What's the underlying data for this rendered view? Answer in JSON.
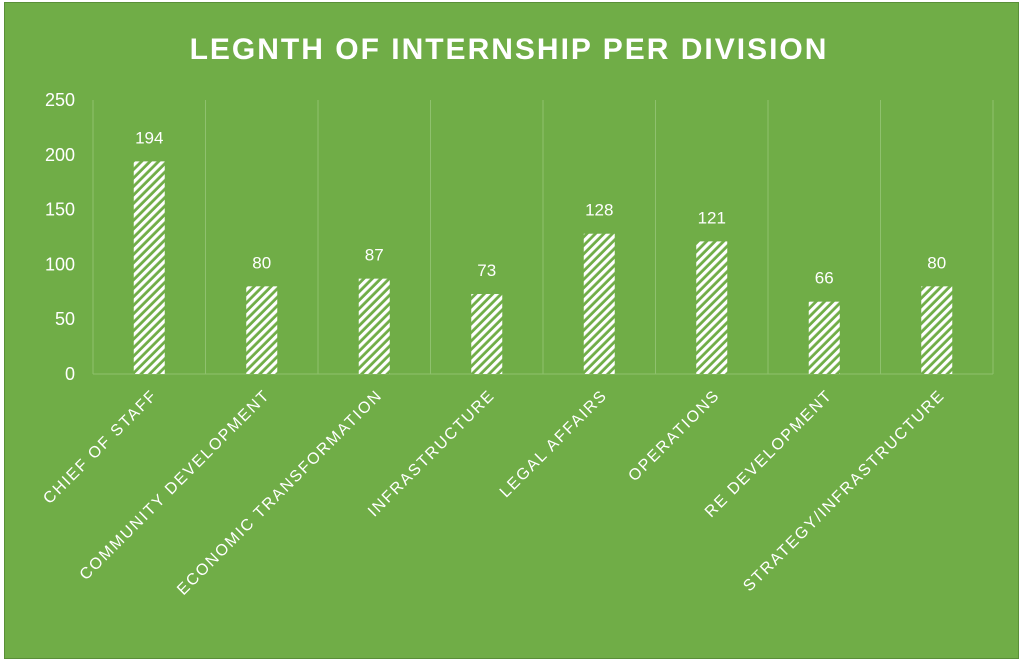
{
  "chart_data": {
    "type": "bar",
    "title": "LEGNTH OF INTERNSHIP PER DIVISION",
    "xlabel": "",
    "ylabel": "",
    "categories": [
      "CHIEF OF STAFF",
      "COMMUNITY DEVELOPMENT",
      "ECONOMIC TRANSFORMATION",
      "INFRASTRUCTURE",
      "LEGAL AFFAIRS",
      "OPERATIONS",
      "RE DEVELOPMENT",
      "STRATEGY/INFRASTRUCTURE"
    ],
    "values": [
      194,
      80,
      87,
      73,
      128,
      121,
      66,
      80
    ],
    "ylim": [
      0,
      250
    ],
    "yticks": [
      0,
      50,
      100,
      150,
      200,
      250
    ],
    "grid": "vertical-category-lines",
    "legend": "none",
    "data_labels": true,
    "bar_fill": "white diagonal hatch",
    "colors": {
      "background": "#70ad47",
      "bar": "#ffffff",
      "gridline": "#8fc16e",
      "text": "#ffffff"
    }
  }
}
